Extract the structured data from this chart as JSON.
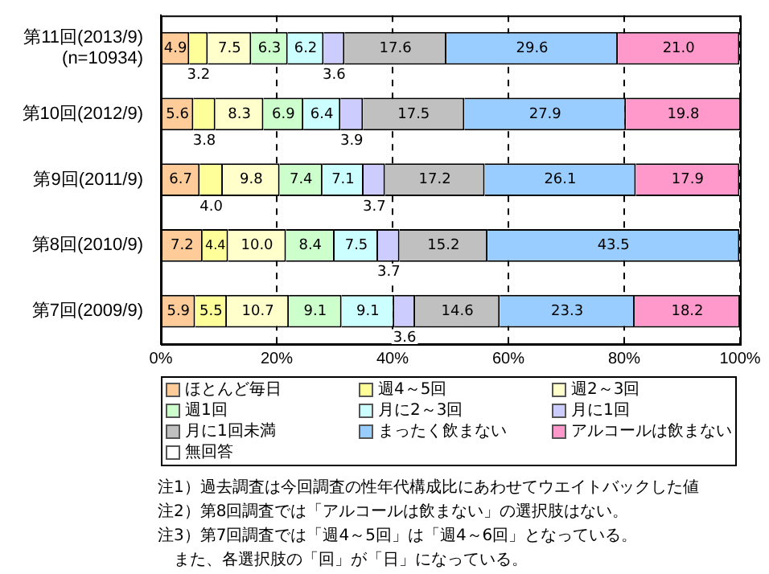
{
  "chart_data": {
    "type": "bar",
    "orientation": "horizontal",
    "stacked": true,
    "categories": [
      "第11回(2013/9)\n(n=10934)",
      "第10回(2012/9)",
      "第9回(2011/9)",
      "第8回(2010/9)",
      "第7回(2009/9)"
    ],
    "series": [
      {
        "name": "ほとんど毎日",
        "color": "#ffcc99",
        "values": [
          4.9,
          5.6,
          6.7,
          7.2,
          5.9
        ],
        "value_labels": [
          "4.9",
          "5.6",
          "6.7",
          "7.2",
          "5.9"
        ]
      },
      {
        "name": "週4～5回",
        "color": "#ffff99",
        "values": [
          3.2,
          3.8,
          4.0,
          4.4,
          5.5
        ],
        "value_labels": [
          "3.2",
          "3.8",
          "4.0",
          "4.4",
          "5.5"
        ]
      },
      {
        "name": "週2～3回",
        "color": "#ffffcc",
        "values": [
          7.5,
          8.3,
          9.8,
          10.0,
          10.7
        ],
        "value_labels": [
          "7.5",
          "8.3",
          "9.8",
          "10.0",
          "10.7"
        ]
      },
      {
        "name": "週1回",
        "color": "#ccffcc",
        "values": [
          6.3,
          6.9,
          7.4,
          8.4,
          9.1
        ],
        "value_labels": [
          "6.3",
          "6.9",
          "7.4",
          "8.4",
          "9.1"
        ]
      },
      {
        "name": "月に2～3回",
        "color": "#ccffff",
        "values": [
          6.2,
          6.4,
          7.1,
          7.5,
          9.1
        ],
        "value_labels": [
          "6.2",
          "6.4",
          "7.1",
          "7.5",
          "9.1"
        ]
      },
      {
        "name": "月に1回",
        "color": "#ccccff",
        "values": [
          3.6,
          3.9,
          3.7,
          3.7,
          3.6
        ],
        "value_labels": [
          "3.6",
          "3.9",
          "3.7",
          "3.7",
          "3.6"
        ]
      },
      {
        "name": "月に1回未満",
        "color": "#c0c0c0",
        "values": [
          17.6,
          17.5,
          17.2,
          15.2,
          14.6
        ],
        "value_labels": [
          "17.6",
          "17.5",
          "17.2",
          "15.2",
          "14.6"
        ]
      },
      {
        "name": "まったく飲まない",
        "color": "#99ccff",
        "values": [
          29.6,
          27.9,
          26.1,
          43.5,
          23.3
        ],
        "value_labels": [
          "29.6",
          "27.9",
          "26.1",
          "43.5",
          "23.3"
        ]
      },
      {
        "name": "アルコールは飲まない",
        "color": "#ff99cc",
        "values": [
          21.0,
          19.8,
          17.9,
          null,
          18.2
        ],
        "value_labels": [
          "21.0",
          "19.8",
          "17.9",
          null,
          "18.2"
        ]
      },
      {
        "name": "無回答",
        "color": "#ffffff",
        "values": [
          null,
          null,
          null,
          null,
          null
        ]
      }
    ],
    "xlim": [
      0,
      100
    ],
    "xticks": [
      {
        "value": 0,
        "label": "0%"
      },
      {
        "value": 20,
        "label": "20%"
      },
      {
        "value": 40,
        "label": "40%"
      },
      {
        "value": 60,
        "label": "60%"
      },
      {
        "value": 80,
        "label": "80%"
      },
      {
        "value": 100,
        "label": "100%"
      }
    ],
    "grid": "x",
    "legend": "bottom",
    "annotations": [
      "注1）過去調査は今回調査の性年代構成比にあわせてウエイトバックした値",
      "注2）第8回調査では「アルコールは飲まない」の選択肢はない。",
      "注3）第7回調査では「週4～5回」は「週4～6回」となっている。",
      "　また、各選択肢の「回」が「日」になっている。"
    ]
  }
}
